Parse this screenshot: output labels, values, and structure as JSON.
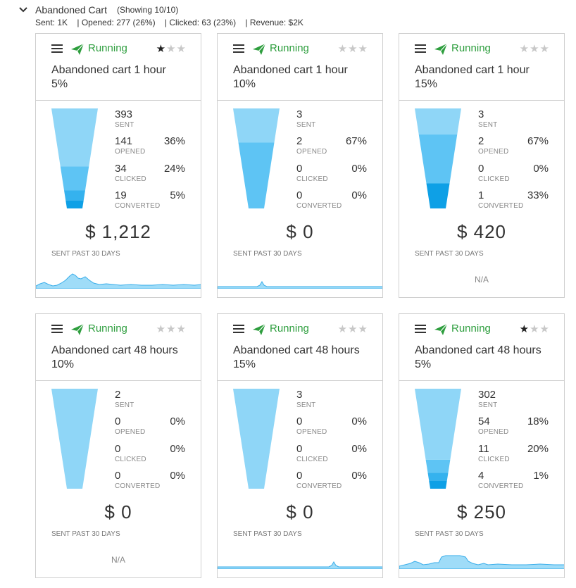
{
  "header": {
    "title": "Abandoned Cart",
    "showing": "(Showing 10/10)",
    "stats": {
      "sent": "Sent:   1K",
      "opened": "| Opened:   277 (26%)",
      "clicked": "| Clicked:   63 (23%)",
      "revenue": "| Revenue:   $2K"
    }
  },
  "labels": {
    "sent": "SENT",
    "opened": "OPENED",
    "clicked": "CLICKED",
    "converted": "CONVERTED",
    "past": "SENT PAST 30 DAYS",
    "na": "N/A"
  },
  "colors": {
    "running": "#2e9e3e",
    "funnel_sent": "#8fd6f7",
    "funnel_opened": "#5ec4f4",
    "funnel_clicked": "#35b2ee",
    "funnel_converted": "#0ea0e6",
    "spark_fill": "#9fdcf8",
    "spark_line": "#3aaeea"
  },
  "cards": [
    {
      "status": "Running",
      "rating": 1,
      "name": "Abandoned cart 1 hour",
      "sub": "5%",
      "sent": "393",
      "opened": "141",
      "opened_pct": "36%",
      "clicked": "34",
      "clicked_pct": "24%",
      "converted": "19",
      "converted_pct": "5%",
      "revenue": "$ 1,212",
      "has_chart": true
    },
    {
      "status": "Running",
      "rating": 0,
      "name": "Abandoned cart 1 hour",
      "sub": "10%",
      "sent": "3",
      "opened": "2",
      "opened_pct": "67%",
      "clicked": "0",
      "clicked_pct": "0%",
      "converted": "0",
      "converted_pct": "0%",
      "revenue": "$ 0",
      "has_chart": true
    },
    {
      "status": "Running",
      "rating": 0,
      "name": "Abandoned cart 1 hour",
      "sub": "15%",
      "sent": "3",
      "opened": "2",
      "opened_pct": "67%",
      "clicked": "0",
      "clicked_pct": "0%",
      "converted": "1",
      "converted_pct": "33%",
      "revenue": "$ 420",
      "has_chart": false
    },
    {
      "status": "Running",
      "rating": 0,
      "name": "Abandoned cart 48 hours",
      "sub": "10%",
      "sent": "2",
      "opened": "0",
      "opened_pct": "0%",
      "clicked": "0",
      "clicked_pct": "0%",
      "converted": "0",
      "converted_pct": "0%",
      "revenue": "$ 0",
      "has_chart": false
    },
    {
      "status": "Running",
      "rating": 0,
      "name": "Abandoned cart 48 hours",
      "sub": "15%",
      "sent": "3",
      "opened": "0",
      "opened_pct": "0%",
      "clicked": "0",
      "clicked_pct": "0%",
      "converted": "0",
      "converted_pct": "0%",
      "revenue": "$ 0",
      "has_chart": true
    },
    {
      "status": "Running",
      "rating": 1,
      "name": "Abandoned cart 48 hours",
      "sub": "5%",
      "sent": "302",
      "opened": "54",
      "opened_pct": "18%",
      "clicked": "11",
      "clicked_pct": "20%",
      "converted": "4",
      "converted_pct": "1%",
      "revenue": "$ 250",
      "has_chart": true
    }
  ]
}
